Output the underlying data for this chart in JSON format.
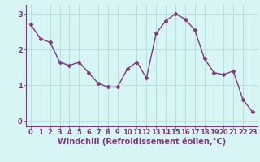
{
  "x": [
    0,
    1,
    2,
    3,
    4,
    5,
    6,
    7,
    8,
    9,
    10,
    11,
    12,
    13,
    14,
    15,
    16,
    17,
    18,
    19,
    20,
    21,
    22,
    23
  ],
  "y": [
    2.7,
    2.3,
    2.2,
    1.65,
    1.55,
    1.65,
    1.35,
    1.05,
    0.95,
    0.95,
    1.45,
    1.65,
    1.2,
    2.45,
    2.8,
    3.0,
    2.85,
    2.55,
    1.75,
    1.35,
    1.3,
    1.4,
    0.6,
    0.25
  ],
  "line_color": "#7b3a7b",
  "marker": "D",
  "marker_size": 2.5,
  "line_width": 1.0,
  "bg_color": "#d8f5f5",
  "grid_color": "#b8dede",
  "xlabel": "Windchill (Refroidissement éolien,°C)",
  "xlabel_color": "#7b3a7b",
  "tick_color": "#7b3a7b",
  "xlabel_fontsize": 7.0,
  "tick_fontsize": 6.0,
  "xlim": [
    -0.5,
    23.5
  ],
  "ylim": [
    -0.15,
    3.25
  ],
  "yticks": [
    0,
    1,
    2,
    3
  ],
  "xticks": [
    0,
    1,
    2,
    3,
    4,
    5,
    6,
    7,
    8,
    9,
    10,
    11,
    12,
    13,
    14,
    15,
    16,
    17,
    18,
    19,
    20,
    21,
    22,
    23
  ],
  "spine_color": "#7b3a7b"
}
